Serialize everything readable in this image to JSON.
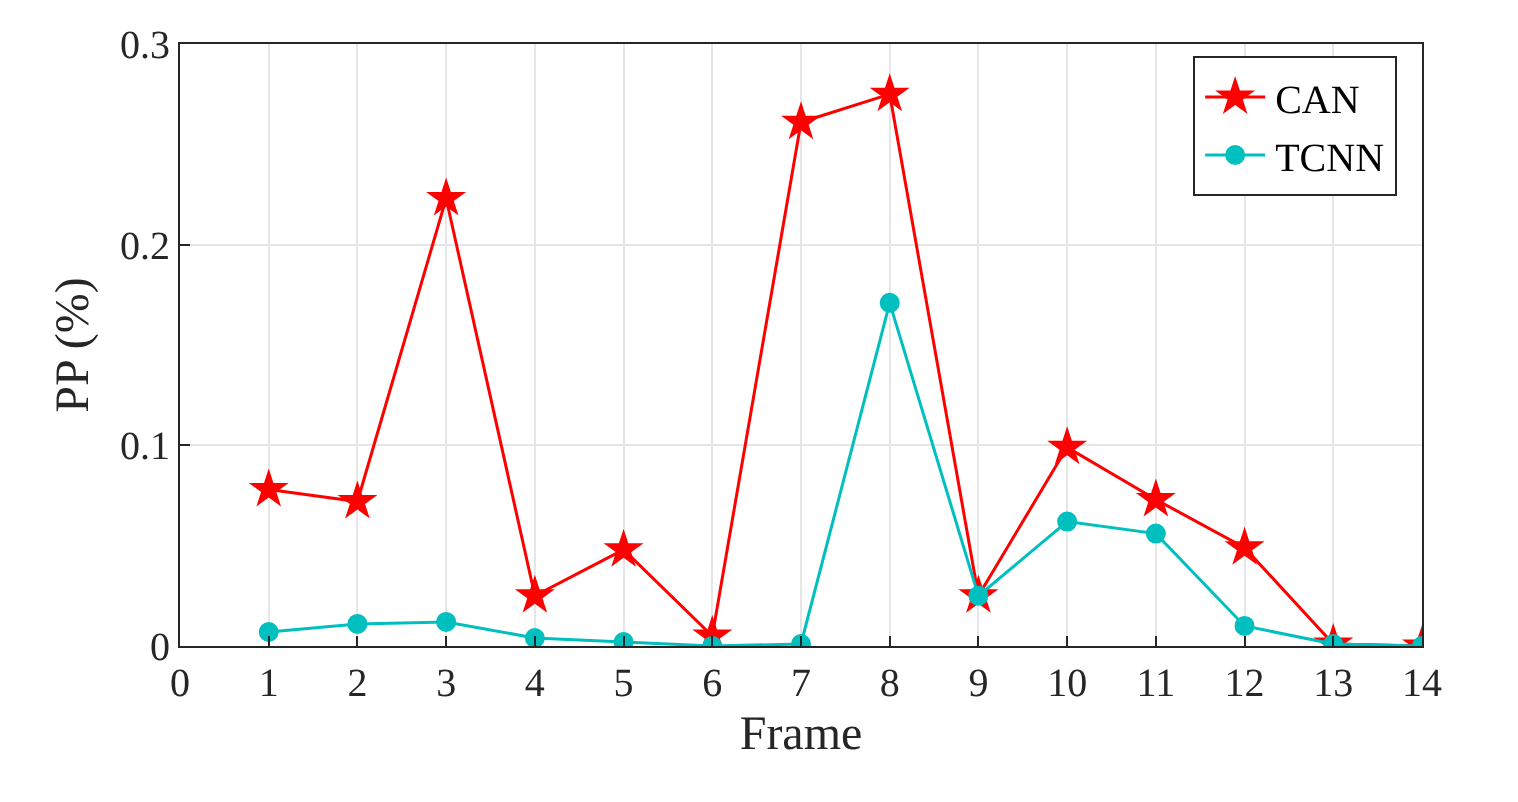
{
  "chart_data": {
    "type": "line",
    "xlabel": "Frame",
    "ylabel": "PP (%)",
    "x": [
      1,
      2,
      3,
      4,
      5,
      6,
      7,
      8,
      9,
      10,
      11,
      12,
      13,
      14
    ],
    "series": [
      {
        "name": "CAN",
        "color": "#ff0000",
        "marker": "star",
        "values": [
          0.078,
          0.072,
          0.223,
          0.025,
          0.048,
          0.005,
          0.261,
          0.275,
          0.025,
          0.099,
          0.073,
          0.049,
          0.001,
          0.0
        ]
      },
      {
        "name": "TCNN",
        "color": "#00bfbf",
        "marker": "circle",
        "values": [
          0.007,
          0.011,
          0.012,
          0.004,
          0.002,
          0.0,
          0.001,
          0.171,
          0.025,
          0.062,
          0.056,
          0.01,
          0.001,
          0.0
        ]
      }
    ],
    "xlim": [
      0,
      14
    ],
    "xticks": [
      0,
      1,
      2,
      3,
      4,
      5,
      6,
      7,
      8,
      9,
      10,
      11,
      12,
      13,
      14
    ],
    "ylim": [
      0,
      0.3
    ],
    "yticks": [
      0,
      0.1,
      0.2,
      0.3
    ],
    "grid": true,
    "legend": "top right",
    "line_style": "solid"
  }
}
